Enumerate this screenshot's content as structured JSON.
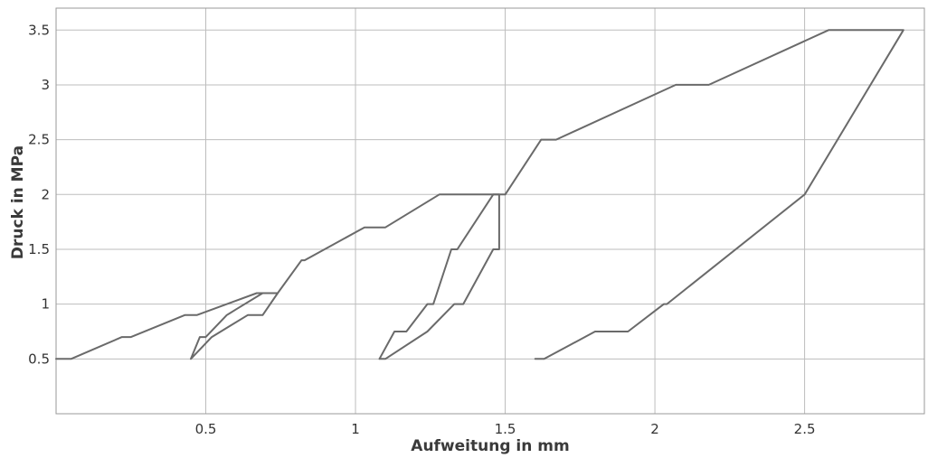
{
  "chart_data": {
    "type": "line",
    "xlabel": "Aufweitung in mm",
    "ylabel": "Druck in MPa",
    "xlim": [
      0,
      2.9
    ],
    "ylim": [
      0,
      3.7
    ],
    "xticks": [
      0.5,
      1,
      1.5,
      2,
      2.5
    ],
    "yticks": [
      0.5,
      1,
      1.5,
      2,
      2.5,
      3,
      3.5
    ],
    "xtick_labels": [
      "0.5",
      "1",
      "1.5",
      "2",
      "2.5"
    ],
    "ytick_labels": [
      "0.5",
      "1",
      "1.5",
      "2",
      "2.5",
      "3",
      "3.5"
    ],
    "grid": true,
    "line_color": "#6a6a6a",
    "series": [
      {
        "points": [
          [
            0,
            0.5
          ],
          [
            0.05,
            0.5
          ],
          [
            0.22,
            0.7
          ],
          [
            0.25,
            0.7
          ],
          [
            0.43,
            0.9
          ],
          [
            0.47,
            0.9
          ],
          [
            0.67,
            1.1
          ],
          [
            0.74,
            1.1
          ],
          [
            0.82,
            1.4
          ],
          [
            0.83,
            1.4
          ],
          [
            1.03,
            1.7
          ],
          [
            1.1,
            1.7
          ],
          [
            1.28,
            2.0
          ],
          [
            1.5,
            2.0
          ],
          [
            1.62,
            2.5
          ],
          [
            1.67,
            2.5
          ],
          [
            2.07,
            3.0
          ],
          [
            2.18,
            3.0
          ],
          [
            2.58,
            3.5
          ],
          [
            2.83,
            3.5
          ],
          [
            2.5,
            2.0
          ],
          [
            2.04,
            1.0
          ],
          [
            2.03,
            1.0
          ],
          [
            1.91,
            0.75
          ],
          [
            1.8,
            0.75
          ],
          [
            1.63,
            0.5
          ],
          [
            1.6,
            0.5
          ]
        ]
      },
      {
        "points": [
          [
            0.45,
            0.5
          ],
          [
            0.52,
            0.7
          ],
          [
            0.55,
            0.75
          ],
          [
            0.64,
            0.9
          ],
          [
            0.69,
            0.9
          ],
          [
            0.74,
            1.1
          ],
          [
            0.69,
            1.1
          ],
          [
            0.6,
            0.95
          ],
          [
            0.57,
            0.9
          ],
          [
            0.5,
            0.7
          ],
          [
            0.48,
            0.7
          ],
          [
            0.45,
            0.5
          ]
        ]
      },
      {
        "points": [
          [
            1.08,
            0.5
          ],
          [
            1.1,
            0.5
          ],
          [
            1.24,
            0.75
          ],
          [
            1.33,
            1.0
          ],
          [
            1.36,
            1.0
          ],
          [
            1.46,
            1.5
          ],
          [
            1.48,
            1.5
          ],
          [
            1.48,
            2.0
          ],
          [
            1.46,
            2.0
          ],
          [
            1.34,
            1.5
          ],
          [
            1.32,
            1.5
          ],
          [
            1.26,
            1.0
          ],
          [
            1.24,
            1.0
          ],
          [
            1.17,
            0.75
          ],
          [
            1.13,
            0.75
          ],
          [
            1.08,
            0.5
          ]
        ]
      }
    ]
  }
}
